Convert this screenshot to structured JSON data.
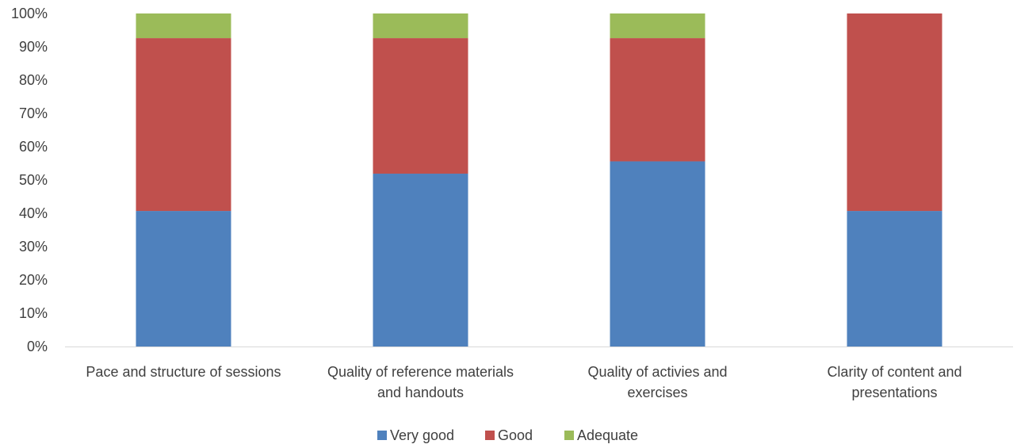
{
  "chart_data": {
    "type": "bar",
    "stacked": true,
    "percent_stacked": true,
    "title": "",
    "xlabel": "",
    "ylabel": "",
    "ylim": [
      0,
      100
    ],
    "y_ticks": [
      "0%",
      "10%",
      "20%",
      "30%",
      "40%",
      "50%",
      "60%",
      "70%",
      "80%",
      "90%",
      "100%"
    ],
    "grid": false,
    "legend_position": "bottom",
    "categories": [
      [
        "Pace and structure of sessions"
      ],
      [
        "Quality of reference materials",
        "and handouts"
      ],
      [
        "Quality of activies and",
        "exercises"
      ],
      [
        "Clarity of content and",
        "presentations"
      ]
    ],
    "series": [
      {
        "name": "Very good",
        "color": "#4F81BD",
        "values": [
          40.7,
          51.9,
          55.6,
          40.7
        ]
      },
      {
        "name": "Good",
        "color": "#C0504D",
        "values": [
          51.9,
          40.7,
          37.0,
          59.3
        ]
      },
      {
        "name": "Adequate",
        "color": "#9BBB59",
        "values": [
          7.4,
          7.4,
          7.4,
          0
        ]
      }
    ]
  }
}
